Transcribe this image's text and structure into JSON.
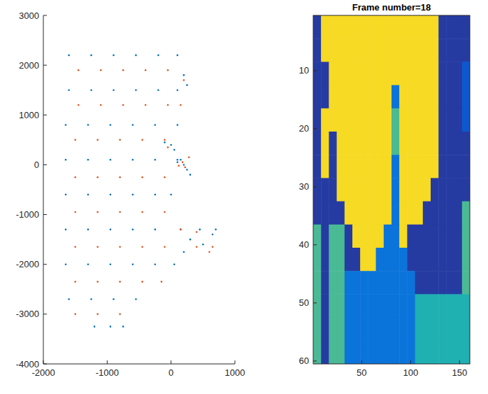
{
  "chart_data": [
    {
      "type": "scatter",
      "marker": "dot",
      "xlim": [
        -2000,
        1000
      ],
      "ylim": [
        -4000,
        3000
      ],
      "xticks": [
        -2000,
        -1000,
        0,
        1000
      ],
      "yticks": [
        -4000,
        -3000,
        -2000,
        -1000,
        0,
        1000,
        2000,
        3000
      ],
      "series": [
        {
          "color": "#0072bd",
          "x": [
            -1600,
            -1250,
            -900,
            -550,
            -200,
            100,
            -1600,
            -1250,
            -900,
            -550,
            -200,
            100,
            -1650,
            -1300,
            -950,
            -600,
            -250,
            100,
            -1650,
            -1300,
            -950,
            -600,
            -250,
            100,
            -1650,
            -1300,
            -950,
            -600,
            -250,
            0,
            -1650,
            -1300,
            -950,
            -600,
            -250,
            150,
            450,
            700,
            -1650,
            -1300,
            -950,
            -600,
            -250,
            50,
            -1600,
            -1250,
            -900,
            -550,
            -1200,
            -950,
            -750,
            200,
            150,
            250,
            100,
            300,
            200,
            250,
            0,
            50,
            -100,
            300,
            500,
            650,
            200
          ],
          "y": [
            2200,
            2200,
            2200,
            2200,
            2200,
            2200,
            1500,
            1500,
            1500,
            1500,
            1500,
            1500,
            800,
            800,
            800,
            800,
            800,
            800,
            100,
            100,
            100,
            100,
            100,
            100,
            -600,
            -600,
            -600,
            -600,
            -600,
            -600,
            -1300,
            -1300,
            -1300,
            -1300,
            -1300,
            -1300,
            -1300,
            -1300,
            -2000,
            -2000,
            -2000,
            -2000,
            -2000,
            -2000,
            -2700,
            -2700,
            -2700,
            -2700,
            -3250,
            -3250,
            -3250,
            0,
            100,
            -100,
            50,
            -200,
            1800,
            1600,
            400,
            300,
            450,
            -1500,
            -1600,
            -1400,
            -1750
          ]
        },
        {
          "color": "#d95319",
          "x": [
            -1450,
            -1100,
            -750,
            -400,
            -50,
            -1450,
            -1100,
            -750,
            -400,
            -50,
            150,
            -1500,
            -1150,
            -800,
            -450,
            -100,
            -1500,
            -1150,
            -800,
            -450,
            -100,
            -1500,
            -1150,
            -800,
            -450,
            -100,
            -1500,
            -1150,
            -800,
            -450,
            -100,
            400,
            650,
            -1500,
            -1150,
            -800,
            -450,
            -150,
            -1500,
            -1150,
            -800,
            180,
            220,
            120,
            280,
            200,
            -50,
            150,
            400,
            600
          ],
          "y": [
            1900,
            1900,
            1900,
            1900,
            1900,
            1200,
            1200,
            1200,
            1200,
            1200,
            1200,
            500,
            500,
            500,
            500,
            500,
            -250,
            -250,
            -250,
            -250,
            -250,
            -950,
            -950,
            -950,
            -950,
            -950,
            -1650,
            -1650,
            -1650,
            -1650,
            -1650,
            -1650,
            -1650,
            -2350,
            -2350,
            -2350,
            -2350,
            -2350,
            -3000,
            -3000,
            -3000,
            50,
            -50,
            -20,
            150,
            1700,
            350,
            -1300,
            -1350,
            -1750
          ]
        }
      ]
    },
    {
      "type": "heatmap",
      "title": "Frame number=18",
      "xlim": [
        0.5,
        160.5
      ],
      "ylim": [
        60.5,
        0.5
      ],
      "xticks": [
        50,
        100,
        150
      ],
      "yticks": [
        10,
        20,
        30,
        40,
        50,
        60
      ],
      "color_range": [
        0,
        1
      ],
      "cells": [
        [
          0.03,
          0.9,
          0.9,
          0.9,
          0.9,
          0.9,
          0.9,
          0.9,
          0.9,
          0.9,
          0.9,
          0.9,
          0.9,
          0.9,
          0.9,
          0.9,
          0.03,
          0.03,
          0.03,
          0.03
        ],
        [
          0.03,
          0.9,
          0.9,
          0.9,
          0.9,
          0.9,
          0.9,
          0.9,
          0.9,
          0.9,
          0.9,
          0.9,
          0.9,
          0.9,
          0.9,
          0.9,
          0.03,
          0.03,
          0.03,
          0.03
        ],
        [
          0.03,
          0.03,
          0.9,
          0.9,
          0.9,
          0.9,
          0.9,
          0.9,
          0.9,
          0.9,
          0.9,
          0.9,
          0.9,
          0.9,
          0.9,
          0.9,
          0.03,
          0.03,
          0.03,
          0.08
        ],
        [
          0.03,
          0.03,
          0.9,
          0.9,
          0.9,
          0.9,
          0.9,
          0.9,
          0.9,
          0.9,
          0.15,
          0.9,
          0.9,
          0.9,
          0.9,
          0.9,
          0.03,
          0.03,
          0.03,
          0.08
        ],
        [
          0.03,
          0.9,
          0.9,
          0.9,
          0.9,
          0.9,
          0.9,
          0.9,
          0.9,
          0.9,
          0.42,
          0.9,
          0.9,
          0.9,
          0.9,
          0.9,
          0.03,
          0.03,
          0.03,
          0.08
        ],
        [
          0.03,
          0.9,
          0.03,
          0.9,
          0.9,
          0.9,
          0.9,
          0.9,
          0.9,
          0.9,
          0.42,
          0.9,
          0.9,
          0.9,
          0.9,
          0.9,
          0.03,
          0.03,
          0.03,
          0.03
        ],
        [
          0.03,
          0.9,
          0.03,
          0.9,
          0.9,
          0.9,
          0.9,
          0.9,
          0.9,
          0.9,
          0.15,
          0.9,
          0.9,
          0.9,
          0.9,
          0.9,
          0.03,
          0.03,
          0.03,
          0.03
        ],
        [
          0.03,
          0.03,
          0.03,
          0.9,
          0.9,
          0.9,
          0.9,
          0.9,
          0.9,
          0.9,
          0.15,
          0.9,
          0.9,
          0.9,
          0.9,
          0.03,
          0.03,
          0.03,
          0.03,
          0.03
        ],
        [
          0.03,
          0.03,
          0.03,
          0.03,
          0.9,
          0.9,
          0.9,
          0.9,
          0.9,
          0.9,
          0.15,
          0.9,
          0.9,
          0.9,
          0.03,
          0.03,
          0.03,
          0.03,
          0.03,
          0.42
        ],
        [
          0.42,
          0.03,
          0.42,
          0.42,
          0.03,
          0.9,
          0.9,
          0.9,
          0.9,
          0.15,
          0.15,
          0.9,
          0.03,
          0.03,
          0.03,
          0.03,
          0.03,
          0.03,
          0.03,
          0.42
        ],
        [
          0.42,
          0.03,
          0.42,
          0.42,
          0.03,
          0.03,
          0.9,
          0.9,
          0.15,
          0.15,
          0.15,
          0.15,
          0.03,
          0.03,
          0.03,
          0.03,
          0.03,
          0.03,
          0.03,
          0.42
        ],
        [
          0.42,
          0.03,
          0.42,
          0.42,
          0.15,
          0.15,
          0.15,
          0.15,
          0.15,
          0.15,
          0.15,
          0.15,
          0.15,
          0.03,
          0.03,
          0.03,
          0.03,
          0.03,
          0.03,
          0.42
        ],
        [
          0.42,
          0.03,
          0.42,
          0.42,
          0.15,
          0.15,
          0.15,
          0.15,
          0.15,
          0.15,
          0.15,
          0.15,
          0.15,
          0.35,
          0.35,
          0.35,
          0.35,
          0.35,
          0.35,
          0.35
        ],
        [
          0.42,
          0.03,
          0.42,
          0.42,
          0.15,
          0.15,
          0.15,
          0.15,
          0.15,
          0.15,
          0.15,
          0.15,
          0.15,
          0.35,
          0.35,
          0.35,
          0.35,
          0.35,
          0.35,
          0.35
        ],
        [
          0.42,
          0.03,
          0.42,
          0.42,
          0.15,
          0.15,
          0.15,
          0.15,
          0.15,
          0.15,
          0.15,
          0.15,
          0.15,
          0.35,
          0.35,
          0.35,
          0.35,
          0.35,
          0.35,
          0.35
        ]
      ]
    }
  ]
}
